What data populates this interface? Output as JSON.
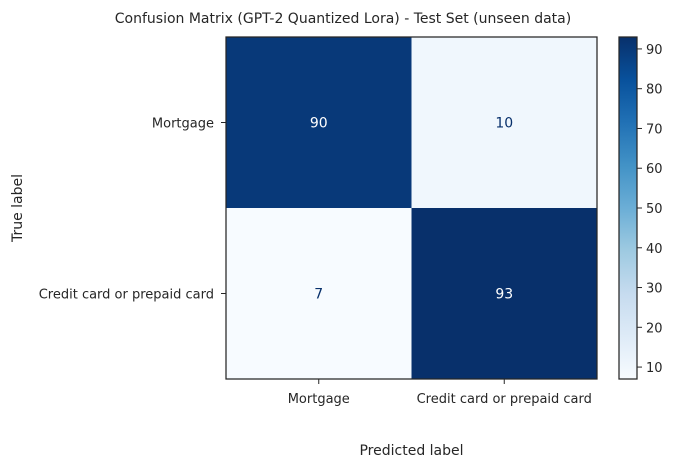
{
  "chart_data": {
    "type": "heatmap",
    "title": "Confusion Matrix (GPT-2 Quantized Lora) - Test Set (unseen data)",
    "xlabel": "Predicted label",
    "ylabel": "True label",
    "row_labels": [
      "Mortgage",
      "Credit card or prepaid card"
    ],
    "col_labels": [
      "Mortgage",
      "Credit card or prepaid card"
    ],
    "values": [
      [
        90,
        10
      ],
      [
        7,
        93
      ]
    ],
    "colormap": "Blues",
    "colorbar": {
      "range": [
        7,
        93
      ],
      "ticks": [
        10,
        20,
        30,
        40,
        50,
        60,
        70,
        80,
        90
      ]
    },
    "colors": {
      "low": "#f7fbff",
      "high": "#08306b",
      "text_on_dark": "#ffffff",
      "text_on_light": "#08306b"
    }
  }
}
